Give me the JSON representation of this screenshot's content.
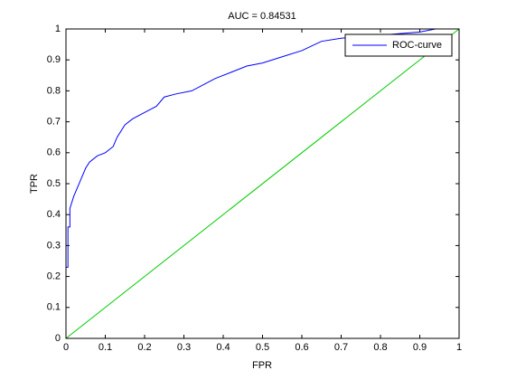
{
  "chart_data": {
    "type": "line",
    "title": "AUC = 0.84531",
    "x_label": "FPR",
    "y_label": "TPR",
    "xlim": [
      0,
      1
    ],
    "ylim": [
      0,
      1
    ],
    "xticks": [
      0,
      0.1,
      0.2,
      0.3,
      0.4,
      0.5,
      0.6,
      0.7,
      0.8,
      0.9,
      1
    ],
    "yticks": [
      0,
      0.1,
      0.2,
      0.3,
      0.4,
      0.5,
      0.6,
      0.7,
      0.8,
      0.9,
      1
    ],
    "grid": false,
    "legend": "upper right",
    "series": [
      {
        "name": "ROC-curve",
        "color": "#0000ff",
        "x": [
          0,
          0,
          0.005,
          0.005,
          0.01,
          0.01,
          0.02,
          0.03,
          0.04,
          0.05,
          0.06,
          0.08,
          0.1,
          0.12,
          0.13,
          0.15,
          0.17,
          0.2,
          0.23,
          0.25,
          0.28,
          0.32,
          0.35,
          0.38,
          0.42,
          0.46,
          0.5,
          0.55,
          0.6,
          0.65,
          0.7,
          0.8,
          0.9,
          0.94,
          0.945
        ],
        "values": [
          0,
          0.23,
          0.23,
          0.36,
          0.36,
          0.42,
          0.46,
          0.49,
          0.52,
          0.55,
          0.57,
          0.59,
          0.6,
          0.62,
          0.65,
          0.69,
          0.71,
          0.73,
          0.75,
          0.78,
          0.79,
          0.8,
          0.82,
          0.84,
          0.86,
          0.88,
          0.89,
          0.91,
          0.93,
          0.96,
          0.97,
          0.98,
          0.99,
          1,
          1
        ]
      },
      {
        "color": "#00cc00",
        "x": [
          0,
          1
        ],
        "values": [
          0,
          1
        ]
      }
    ]
  }
}
